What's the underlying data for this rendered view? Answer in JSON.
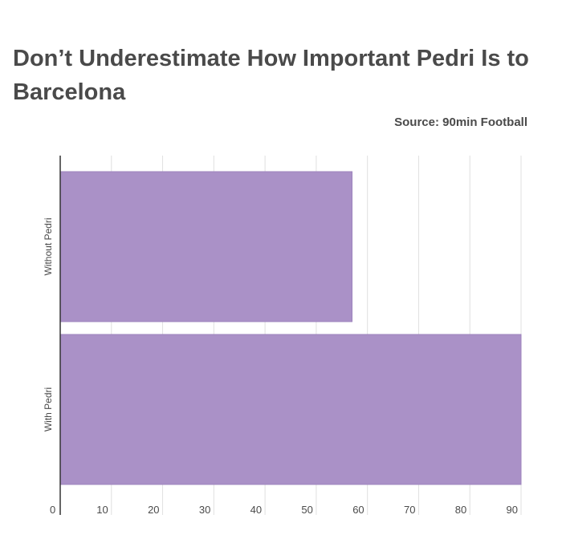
{
  "header": {
    "title": "Don’t Underestimate How Important Pedri Is to Barcelona",
    "source": "Source: 90min Football"
  },
  "colors": {
    "bar": "#aa91c7",
    "bar_stroke": "#9d84bd",
    "grid": "#e0e0e0",
    "axis": "#333333",
    "text": "#4a4a4a"
  },
  "chart_data": {
    "type": "bar",
    "orientation": "horizontal",
    "categories": [
      "Without Pedri",
      "With Pedri"
    ],
    "values": [
      57,
      90
    ],
    "xlim": [
      0,
      90
    ],
    "xticks": [
      0,
      10,
      20,
      30,
      40,
      50,
      60,
      70,
      80,
      90
    ],
    "grid": true,
    "legend": "none"
  }
}
